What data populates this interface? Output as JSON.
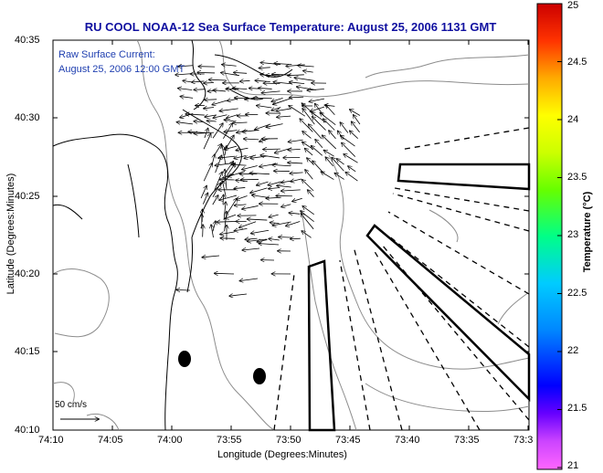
{
  "title": "RU COOL  NOAA-12  Sea Surface Temperature:  August 25, 2006 1131 GMT",
  "current_note": {
    "line1": "Raw Surface Current:",
    "line2": "August 25, 2006 12:00 GMT"
  },
  "axes": {
    "xlabel": "Longitude (Degrees:Minutes)",
    "ylabel": "Latitude (Degrees:Minutes)",
    "x_ticks": [
      "74:10",
      "74:05",
      "74:00",
      "73:55",
      "73:50",
      "73:45",
      "73:40",
      "73:35",
      "73:3"
    ],
    "y_ticks": [
      "40:35",
      "40:30",
      "40:25",
      "40:20",
      "40:15",
      "40:10"
    ]
  },
  "colorbar": {
    "label": "Temperature (°C)",
    "ticks": [
      "25",
      "24.5",
      "24",
      "23.5",
      "23",
      "22.5",
      "22",
      "21.5",
      "21"
    ],
    "min": 21,
    "max": 25
  },
  "reference_vector": {
    "label": "50 cm/s"
  },
  "colors": {
    "title": "#1010a0",
    "note": "#1f3fb0",
    "land": "#000000",
    "bathymetry": "#888888"
  }
}
